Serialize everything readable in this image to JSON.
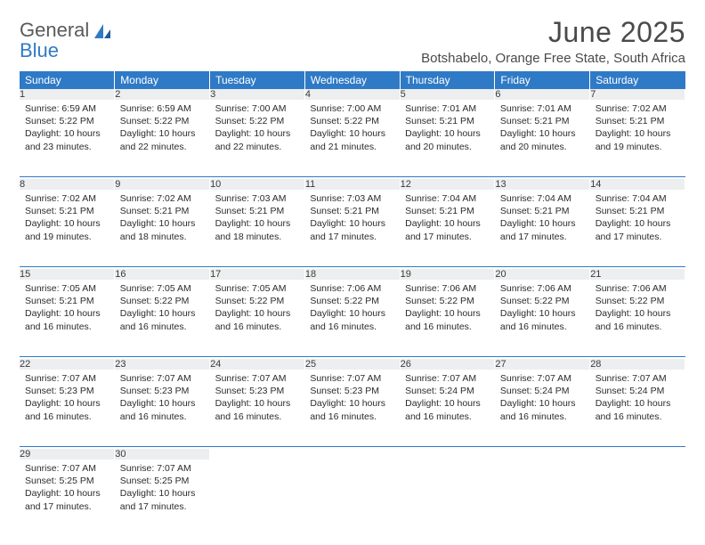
{
  "brand": {
    "top": "General",
    "bottom": "Blue"
  },
  "title": "June 2025",
  "location": "Botshabelo, Orange Free State, South Africa",
  "colors": {
    "header_bg": "#2f7ac6",
    "header_fg": "#ffffff",
    "daynum_bg": "#eceeef",
    "text": "#2b2b2b",
    "divider": "#2f7ac6",
    "logo_gray": "#5a5a5a",
    "logo_blue": "#2f7ac6",
    "page_bg": "#ffffff"
  },
  "weekdays": [
    "Sunday",
    "Monday",
    "Tuesday",
    "Wednesday",
    "Thursday",
    "Friday",
    "Saturday"
  ],
  "weeks": [
    [
      {
        "n": "1",
        "sunrise": "6:59 AM",
        "sunset": "5:22 PM",
        "daylight": "10 hours and 23 minutes."
      },
      {
        "n": "2",
        "sunrise": "6:59 AM",
        "sunset": "5:22 PM",
        "daylight": "10 hours and 22 minutes."
      },
      {
        "n": "3",
        "sunrise": "7:00 AM",
        "sunset": "5:22 PM",
        "daylight": "10 hours and 22 minutes."
      },
      {
        "n": "4",
        "sunrise": "7:00 AM",
        "sunset": "5:22 PM",
        "daylight": "10 hours and 21 minutes."
      },
      {
        "n": "5",
        "sunrise": "7:01 AM",
        "sunset": "5:21 PM",
        "daylight": "10 hours and 20 minutes."
      },
      {
        "n": "6",
        "sunrise": "7:01 AM",
        "sunset": "5:21 PM",
        "daylight": "10 hours and 20 minutes."
      },
      {
        "n": "7",
        "sunrise": "7:02 AM",
        "sunset": "5:21 PM",
        "daylight": "10 hours and 19 minutes."
      }
    ],
    [
      {
        "n": "8",
        "sunrise": "7:02 AM",
        "sunset": "5:21 PM",
        "daylight": "10 hours and 19 minutes."
      },
      {
        "n": "9",
        "sunrise": "7:02 AM",
        "sunset": "5:21 PM",
        "daylight": "10 hours and 18 minutes."
      },
      {
        "n": "10",
        "sunrise": "7:03 AM",
        "sunset": "5:21 PM",
        "daylight": "10 hours and 18 minutes."
      },
      {
        "n": "11",
        "sunrise": "7:03 AM",
        "sunset": "5:21 PM",
        "daylight": "10 hours and 17 minutes."
      },
      {
        "n": "12",
        "sunrise": "7:04 AM",
        "sunset": "5:21 PM",
        "daylight": "10 hours and 17 minutes."
      },
      {
        "n": "13",
        "sunrise": "7:04 AM",
        "sunset": "5:21 PM",
        "daylight": "10 hours and 17 minutes."
      },
      {
        "n": "14",
        "sunrise": "7:04 AM",
        "sunset": "5:21 PM",
        "daylight": "10 hours and 17 minutes."
      }
    ],
    [
      {
        "n": "15",
        "sunrise": "7:05 AM",
        "sunset": "5:21 PM",
        "daylight": "10 hours and 16 minutes."
      },
      {
        "n": "16",
        "sunrise": "7:05 AM",
        "sunset": "5:22 PM",
        "daylight": "10 hours and 16 minutes."
      },
      {
        "n": "17",
        "sunrise": "7:05 AM",
        "sunset": "5:22 PM",
        "daylight": "10 hours and 16 minutes."
      },
      {
        "n": "18",
        "sunrise": "7:06 AM",
        "sunset": "5:22 PM",
        "daylight": "10 hours and 16 minutes."
      },
      {
        "n": "19",
        "sunrise": "7:06 AM",
        "sunset": "5:22 PM",
        "daylight": "10 hours and 16 minutes."
      },
      {
        "n": "20",
        "sunrise": "7:06 AM",
        "sunset": "5:22 PM",
        "daylight": "10 hours and 16 minutes."
      },
      {
        "n": "21",
        "sunrise": "7:06 AM",
        "sunset": "5:22 PM",
        "daylight": "10 hours and 16 minutes."
      }
    ],
    [
      {
        "n": "22",
        "sunrise": "7:07 AM",
        "sunset": "5:23 PM",
        "daylight": "10 hours and 16 minutes."
      },
      {
        "n": "23",
        "sunrise": "7:07 AM",
        "sunset": "5:23 PM",
        "daylight": "10 hours and 16 minutes."
      },
      {
        "n": "24",
        "sunrise": "7:07 AM",
        "sunset": "5:23 PM",
        "daylight": "10 hours and 16 minutes."
      },
      {
        "n": "25",
        "sunrise": "7:07 AM",
        "sunset": "5:23 PM",
        "daylight": "10 hours and 16 minutes."
      },
      {
        "n": "26",
        "sunrise": "7:07 AM",
        "sunset": "5:24 PM",
        "daylight": "10 hours and 16 minutes."
      },
      {
        "n": "27",
        "sunrise": "7:07 AM",
        "sunset": "5:24 PM",
        "daylight": "10 hours and 16 minutes."
      },
      {
        "n": "28",
        "sunrise": "7:07 AM",
        "sunset": "5:24 PM",
        "daylight": "10 hours and 16 minutes."
      }
    ],
    [
      {
        "n": "29",
        "sunrise": "7:07 AM",
        "sunset": "5:25 PM",
        "daylight": "10 hours and 17 minutes."
      },
      {
        "n": "30",
        "sunrise": "7:07 AM",
        "sunset": "5:25 PM",
        "daylight": "10 hours and 17 minutes."
      },
      null,
      null,
      null,
      null,
      null
    ]
  ],
  "labels": {
    "sunrise": "Sunrise:",
    "sunset": "Sunset:",
    "daylight": "Daylight:"
  }
}
